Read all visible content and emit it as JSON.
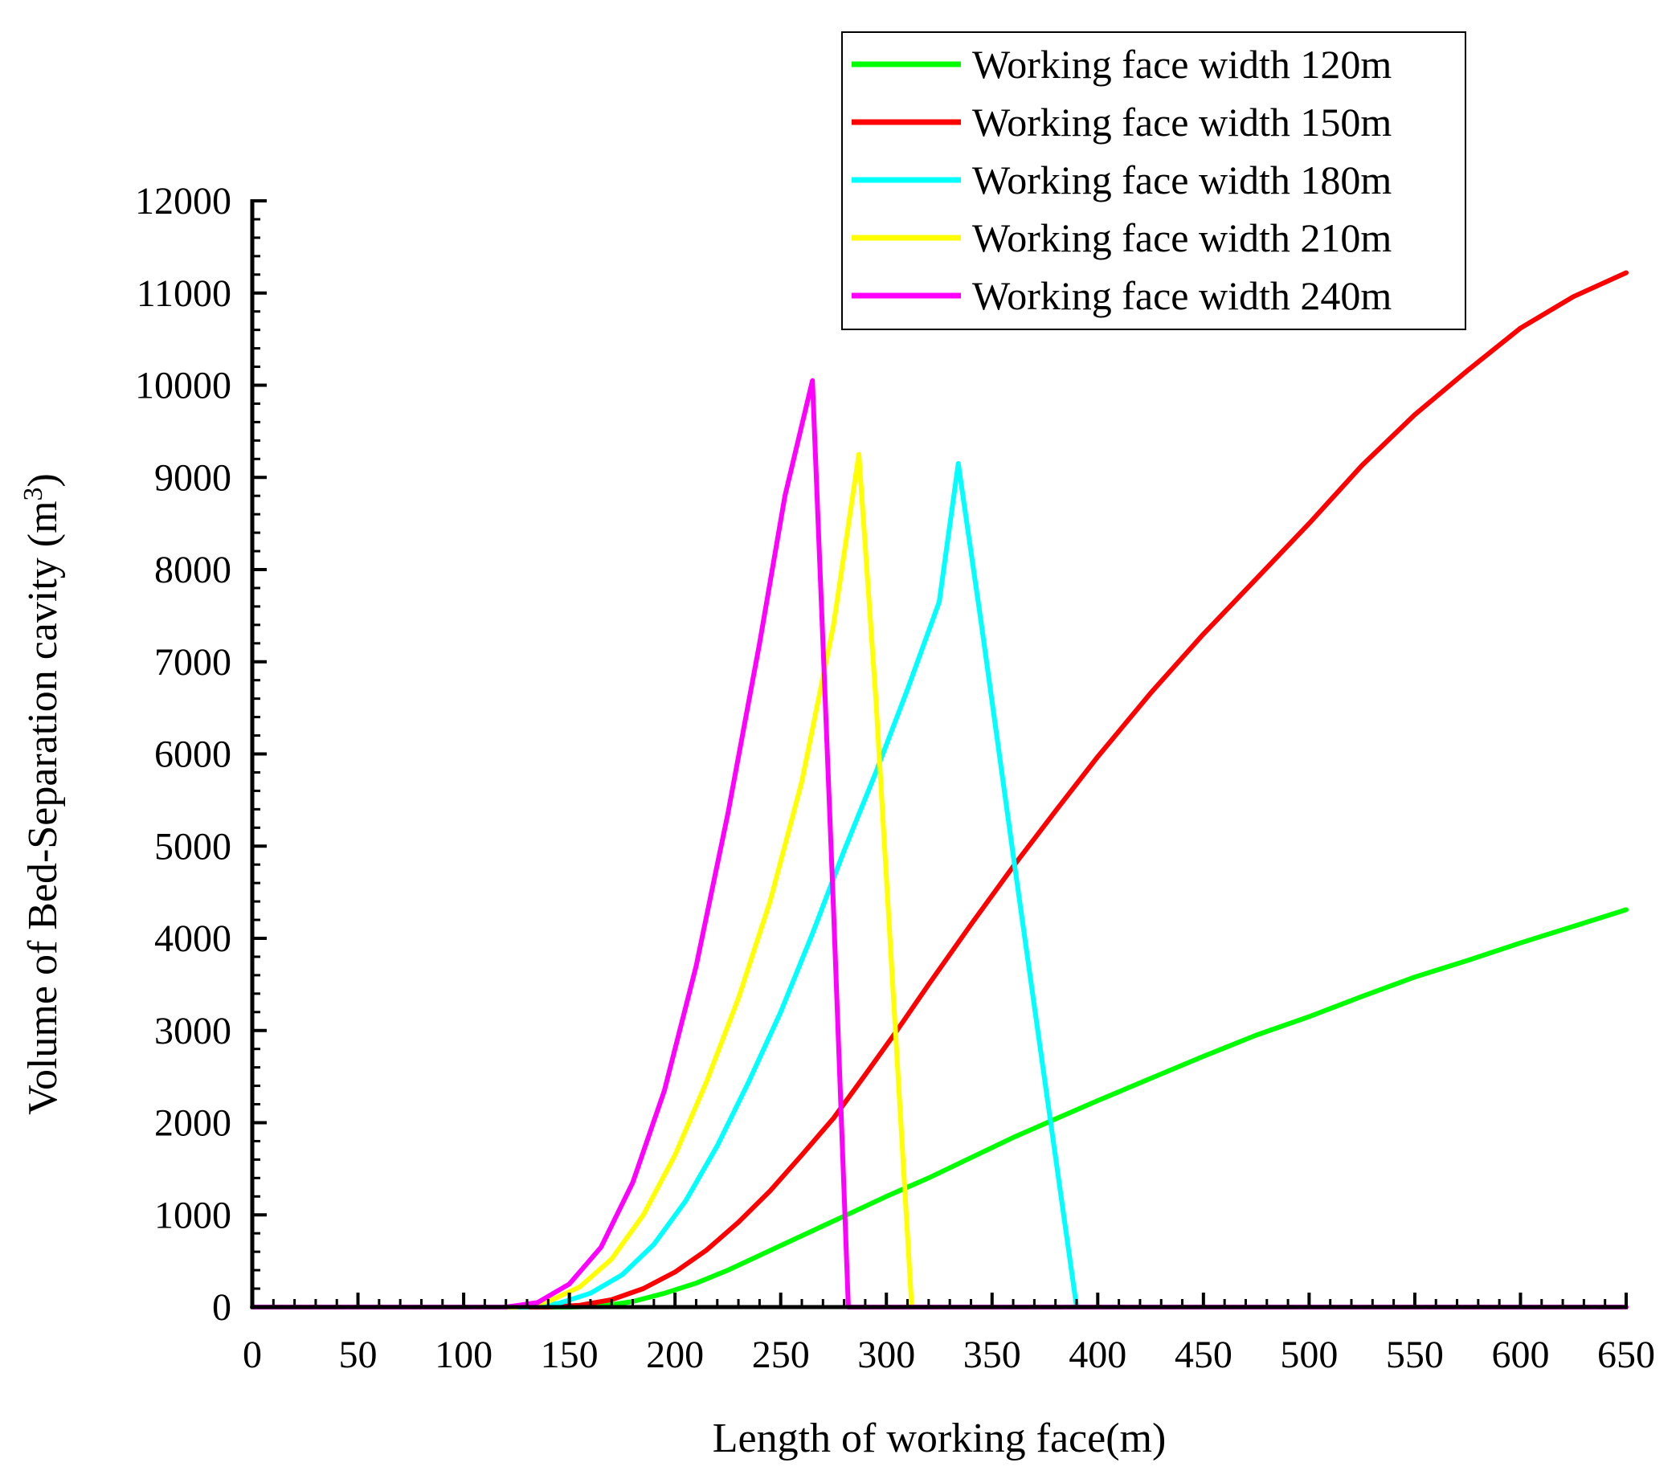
{
  "chart_data": {
    "type": "line",
    "xlabel": "Length of working face(m)",
    "ylabel": "Volume of Bed-Separation cavity (m",
    "ylabel_sup": "3",
    "ylabel_close": ")",
    "xlim": [
      0,
      650
    ],
    "ylim": [
      0,
      12000
    ],
    "x_ticks": [
      "0",
      "50",
      "100",
      "150",
      "200",
      "250",
      "300",
      "350",
      "400",
      "450",
      "500",
      "550",
      "600",
      "650"
    ],
    "y_ticks": [
      "0",
      "1000",
      "2000",
      "3000",
      "4000",
      "5000",
      "6000",
      "7000",
      "8000",
      "9000",
      "10000",
      "11000",
      "12000"
    ],
    "grid": false,
    "legend_position": "top-right",
    "series": [
      {
        "name": "Working face width 120m",
        "color": "#00ff00",
        "x": [
          0,
          150,
          165,
          180,
          195,
          210,
          225,
          240,
          255,
          270,
          285,
          300,
          320,
          340,
          360,
          380,
          400,
          425,
          450,
          475,
          500,
          525,
          550,
          575,
          600,
          625,
          650
        ],
        "y": [
          0,
          0,
          10,
          60,
          150,
          260,
          400,
          560,
          720,
          880,
          1040,
          1200,
          1400,
          1620,
          1840,
          2040,
          2240,
          2480,
          2720,
          2950,
          3150,
          3370,
          3580,
          3760,
          3950,
          4130,
          4310
        ]
      },
      {
        "name": "Working face width 150m",
        "color": "#ff0000",
        "x": [
          0,
          140,
          155,
          170,
          185,
          200,
          215,
          230,
          245,
          260,
          275,
          290,
          305,
          320,
          340,
          360,
          380,
          400,
          425,
          450,
          475,
          500,
          525,
          550,
          575,
          600,
          625,
          650
        ],
        "y": [
          0,
          0,
          20,
          80,
          200,
          380,
          620,
          920,
          1260,
          1650,
          2050,
          2520,
          3000,
          3500,
          4150,
          4780,
          5380,
          5970,
          6660,
          7300,
          7900,
          8500,
          9130,
          9680,
          10160,
          10620,
          10960,
          11220
        ]
      },
      {
        "name": "Working face width 180m",
        "color": "#00ffff",
        "x": [
          0,
          130,
          145,
          160,
          175,
          190,
          205,
          220,
          235,
          250,
          265,
          280,
          295,
          310,
          325,
          334,
          345,
          360,
          375,
          390,
          650
        ],
        "y": [
          0,
          0,
          40,
          150,
          350,
          680,
          1150,
          1750,
          2450,
          3200,
          4050,
          4950,
          5800,
          6700,
          7650,
          9150,
          7400,
          4900,
          2450,
          0,
          0
        ]
      },
      {
        "name": "Working face width 210m",
        "color": "#ffff00",
        "x": [
          0,
          125,
          140,
          155,
          170,
          185,
          200,
          215,
          230,
          245,
          260,
          275,
          287,
          295,
          303,
          312,
          650
        ],
        "y": [
          0,
          0,
          60,
          220,
          520,
          1000,
          1650,
          2450,
          3350,
          4400,
          5700,
          7400,
          9250,
          6600,
          3500,
          0,
          0
        ]
      },
      {
        "name": "Working face width 240m",
        "color": "#ff00ff",
        "x": [
          0,
          120,
          135,
          150,
          165,
          180,
          195,
          210,
          225,
          240,
          252,
          265,
          270,
          275,
          282,
          650
        ],
        "y": [
          0,
          0,
          50,
          250,
          650,
          1350,
          2350,
          3700,
          5350,
          7200,
          8800,
          10050,
          7200,
          4300,
          0,
          0
        ]
      }
    ]
  }
}
